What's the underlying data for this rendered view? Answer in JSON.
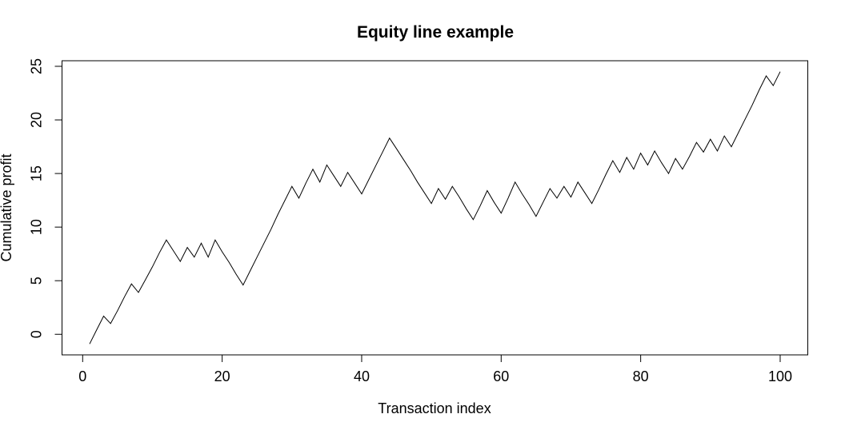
{
  "page": {
    "background_color": "#ffffff",
    "foreground_color": "#000000"
  },
  "chart_data": {
    "type": "line",
    "title": "Equity line example",
    "xlabel": "Transaction index",
    "ylabel": "Cumulative profit",
    "line_color": "#000000",
    "background": "#ffffff",
    "grid": false,
    "legend": null,
    "x_ticks": [
      0,
      20,
      40,
      60,
      80,
      100
    ],
    "y_ticks": [
      0,
      5,
      10,
      15,
      20,
      25
    ],
    "xlim": [
      -2.96,
      103.96
    ],
    "ylim": [
      -1.92,
      25.52
    ],
    "x": [
      1,
      2,
      3,
      4,
      5,
      6,
      7,
      8,
      9,
      10,
      11,
      12,
      13,
      14,
      15,
      16,
      17,
      18,
      19,
      20,
      21,
      22,
      23,
      24,
      25,
      26,
      27,
      28,
      29,
      30,
      31,
      32,
      33,
      34,
      35,
      36,
      37,
      38,
      39,
      40,
      41,
      42,
      43,
      44,
      45,
      46,
      47,
      48,
      49,
      50,
      51,
      52,
      53,
      54,
      55,
      56,
      57,
      58,
      59,
      60,
      61,
      62,
      63,
      64,
      65,
      66,
      67,
      68,
      69,
      70,
      71,
      72,
      73,
      74,
      75,
      76,
      77,
      78,
      79,
      80,
      81,
      82,
      83,
      84,
      85,
      86,
      87,
      88,
      89,
      90,
      91,
      92,
      93,
      94,
      95,
      96,
      97,
      98,
      99,
      100
    ],
    "values": [
      -0.9,
      0.4,
      1.7,
      1.0,
      2.2,
      3.5,
      4.7,
      3.9,
      5.1,
      6.3,
      7.6,
      8.8,
      7.8,
      6.8,
      8.1,
      7.2,
      8.5,
      7.2,
      8.8,
      7.7,
      6.7,
      5.6,
      4.6,
      5.9,
      7.2,
      8.5,
      9.8,
      11.2,
      12.5,
      13.8,
      12.7,
      14.1,
      15.4,
      14.2,
      15.8,
      14.8,
      13.8,
      15.1,
      14.1,
      13.1,
      14.4,
      15.7,
      17.0,
      18.3,
      17.3,
      16.3,
      15.3,
      14.2,
      13.2,
      12.2,
      13.6,
      12.6,
      13.8,
      12.8,
      11.7,
      10.7,
      12.0,
      13.4,
      12.3,
      11.3,
      12.7,
      14.2,
      13.1,
      12.1,
      11.0,
      12.3,
      13.6,
      12.7,
      13.8,
      12.8,
      14.2,
      13.2,
      12.2,
      13.5,
      14.9,
      16.2,
      15.1,
      16.5,
      15.4,
      16.9,
      15.8,
      17.1,
      16.0,
      15.0,
      16.4,
      15.4,
      16.6,
      17.9,
      17.0,
      18.2,
      17.1,
      18.5,
      17.5,
      18.8,
      20.1,
      21.4,
      22.8,
      24.1,
      23.2,
      24.5
    ]
  }
}
